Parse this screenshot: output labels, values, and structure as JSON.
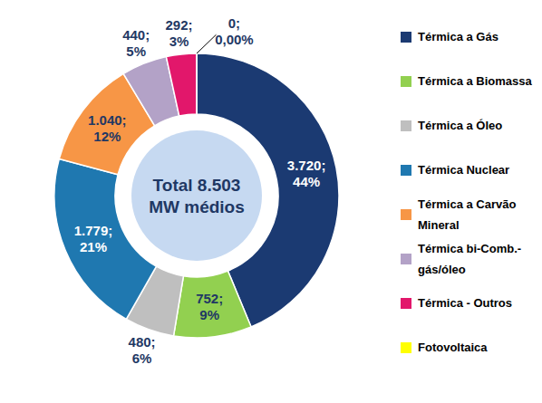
{
  "chart_data": {
    "type": "pie",
    "categories": [
      "Térmica a Gás",
      "Térmica a Biomassa",
      "Térmica a Óleo",
      "Térmica Nuclear",
      "Térmica a Carvão Mineral",
      "Térmica bi-Comb.-gás/óleo",
      "Térmica - Outros",
      "Fotovoltaica"
    ],
    "values": [
      3720,
      752,
      480,
      1779,
      1040,
      440,
      292,
      0
    ],
    "value_labels": [
      "3.720;",
      "752;",
      "480;",
      "1.779;",
      "1.040;",
      "440;",
      "292;",
      "0;"
    ],
    "percentages": [
      44,
      9,
      6,
      21,
      12,
      5,
      3,
      0
    ],
    "percentage_labels": [
      "44%",
      "9%",
      "6%",
      "21%",
      "12%",
      "5%",
      "3%",
      "0,00%"
    ],
    "colors": [
      "#1b3a72",
      "#92d050",
      "#bfbfbf",
      "#1f78b0",
      "#f79646",
      "#b3a2c7",
      "#e2176b",
      "#ffff00"
    ],
    "annotations": [
      "Total 8.503",
      "MW médios"
    ],
    "data_labels": true,
    "legend": "right"
  }
}
